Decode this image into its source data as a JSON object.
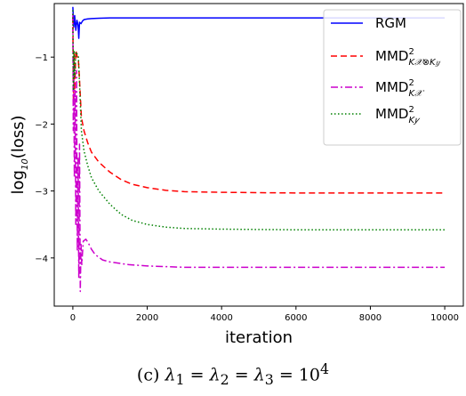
{
  "chart_data": {
    "type": "line",
    "xlabel": "iteration",
    "ylabel": "log10(loss)",
    "ylabel_prefix": "log",
    "ylabel_sub": "10",
    "ylabel_suffix": "(loss)",
    "xlim": [
      -500,
      10500
    ],
    "ylim": [
      -4.72,
      -0.2
    ],
    "xticks": [
      0,
      2000,
      4000,
      6000,
      8000,
      10000
    ],
    "yticks": [
      -1,
      -2,
      -3,
      -4
    ],
    "legend_position": "top-right",
    "series": [
      {
        "name": "RGM",
        "name_base": "RGM",
        "name_sub": "",
        "name_sup": "",
        "color": "#0000ff",
        "style": "solid",
        "points": [
          [
            0,
            -0.25
          ],
          [
            25,
            -0.55
          ],
          [
            50,
            -0.38
          ],
          [
            80,
            -0.6
          ],
          [
            110,
            -0.45
          ],
          [
            140,
            -0.52
          ],
          [
            160,
            -0.72
          ],
          [
            180,
            -0.48
          ],
          [
            220,
            -0.5
          ],
          [
            260,
            -0.46
          ],
          [
            300,
            -0.44
          ],
          [
            400,
            -0.43
          ],
          [
            500,
            -0.425
          ],
          [
            700,
            -0.42
          ],
          [
            1000,
            -0.415
          ],
          [
            2000,
            -0.415
          ],
          [
            4000,
            -0.415
          ],
          [
            6000,
            -0.415
          ],
          [
            8000,
            -0.415
          ],
          [
            10000,
            -0.415
          ]
        ]
      },
      {
        "name": "MMD²_{Kx⊗Ky}",
        "name_base": "MMD",
        "name_sub": "K𝒳⊗K𝑦",
        "name_sup": "2",
        "color": "#ff0000",
        "style": "dashed",
        "points": [
          [
            0,
            -0.4
          ],
          [
            15,
            -1.7
          ],
          [
            30,
            -0.95
          ],
          [
            50,
            -1.5
          ],
          [
            80,
            -0.9
          ],
          [
            120,
            -1.0
          ],
          [
            150,
            -1.05
          ],
          [
            180,
            -1.35
          ],
          [
            230,
            -1.9
          ],
          [
            300,
            -2.1
          ],
          [
            400,
            -2.28
          ],
          [
            500,
            -2.42
          ],
          [
            700,
            -2.57
          ],
          [
            1000,
            -2.72
          ],
          [
            1300,
            -2.83
          ],
          [
            1600,
            -2.9
          ],
          [
            2000,
            -2.95
          ],
          [
            2500,
            -2.99
          ],
          [
            3000,
            -3.01
          ],
          [
            4000,
            -3.02
          ],
          [
            6000,
            -3.03
          ],
          [
            8000,
            -3.03
          ],
          [
            10000,
            -3.03
          ]
        ]
      },
      {
        "name": "MMD²_{Kx}",
        "name_base": "MMD",
        "name_sub": "K𝒳",
        "name_sup": "2",
        "color": "#cc00cc",
        "style": "dashdot",
        "points": [
          [
            0,
            -0.35
          ],
          [
            12,
            -2.1
          ],
          [
            25,
            -1.1
          ],
          [
            40,
            -2.8
          ],
          [
            60,
            -1.5
          ],
          [
            80,
            -3.5
          ],
          [
            100,
            -1.2
          ],
          [
            120,
            -3.9
          ],
          [
            140,
            -2.5
          ],
          [
            160,
            -4.3
          ],
          [
            180,
            -2.3
          ],
          [
            200,
            -4.5
          ],
          [
            220,
            -3.8
          ],
          [
            240,
            -4.1
          ],
          [
            280,
            -3.75
          ],
          [
            350,
            -3.72
          ],
          [
            420,
            -3.78
          ],
          [
            500,
            -3.87
          ],
          [
            600,
            -3.95
          ],
          [
            800,
            -4.03
          ],
          [
            1000,
            -4.06
          ],
          [
            1500,
            -4.1
          ],
          [
            2000,
            -4.12
          ],
          [
            3000,
            -4.14
          ],
          [
            4000,
            -4.14
          ],
          [
            6000,
            -4.14
          ],
          [
            8000,
            -4.14
          ],
          [
            10000,
            -4.14
          ]
        ]
      },
      {
        "name": "MMD²_{Ky}",
        "name_base": "MMD",
        "name_sub": "K𝑦",
        "name_sup": "2",
        "color": "#008000",
        "style": "dotted",
        "points": [
          [
            0,
            -0.3
          ],
          [
            15,
            -1.5
          ],
          [
            30,
            -0.9
          ],
          [
            50,
            -1.3
          ],
          [
            80,
            -0.92
          ],
          [
            110,
            -0.95
          ],
          [
            150,
            -1.0
          ],
          [
            180,
            -1.4
          ],
          [
            230,
            -2.1
          ],
          [
            300,
            -2.4
          ],
          [
            400,
            -2.62
          ],
          [
            500,
            -2.8
          ],
          [
            700,
            -3.0
          ],
          [
            1000,
            -3.2
          ],
          [
            1300,
            -3.35
          ],
          [
            1600,
            -3.44
          ],
          [
            2000,
            -3.5
          ],
          [
            2500,
            -3.54
          ],
          [
            3000,
            -3.56
          ],
          [
            4000,
            -3.57
          ],
          [
            6000,
            -3.58
          ],
          [
            8000,
            -3.58
          ],
          [
            10000,
            -3.58
          ]
        ]
      }
    ]
  },
  "caption": {
    "text": "(c) λ1 = λ2 = λ3 = 10^4",
    "prefix": "(c) ",
    "l1": "λ",
    "l1_sub": "1",
    "eq1": " = ",
    "l2": "λ",
    "l2_sub": "2",
    "eq2": " = ",
    "l3": "λ",
    "l3_sub": "3",
    "eq3": " = ",
    "base": "10",
    "exp": "4"
  }
}
